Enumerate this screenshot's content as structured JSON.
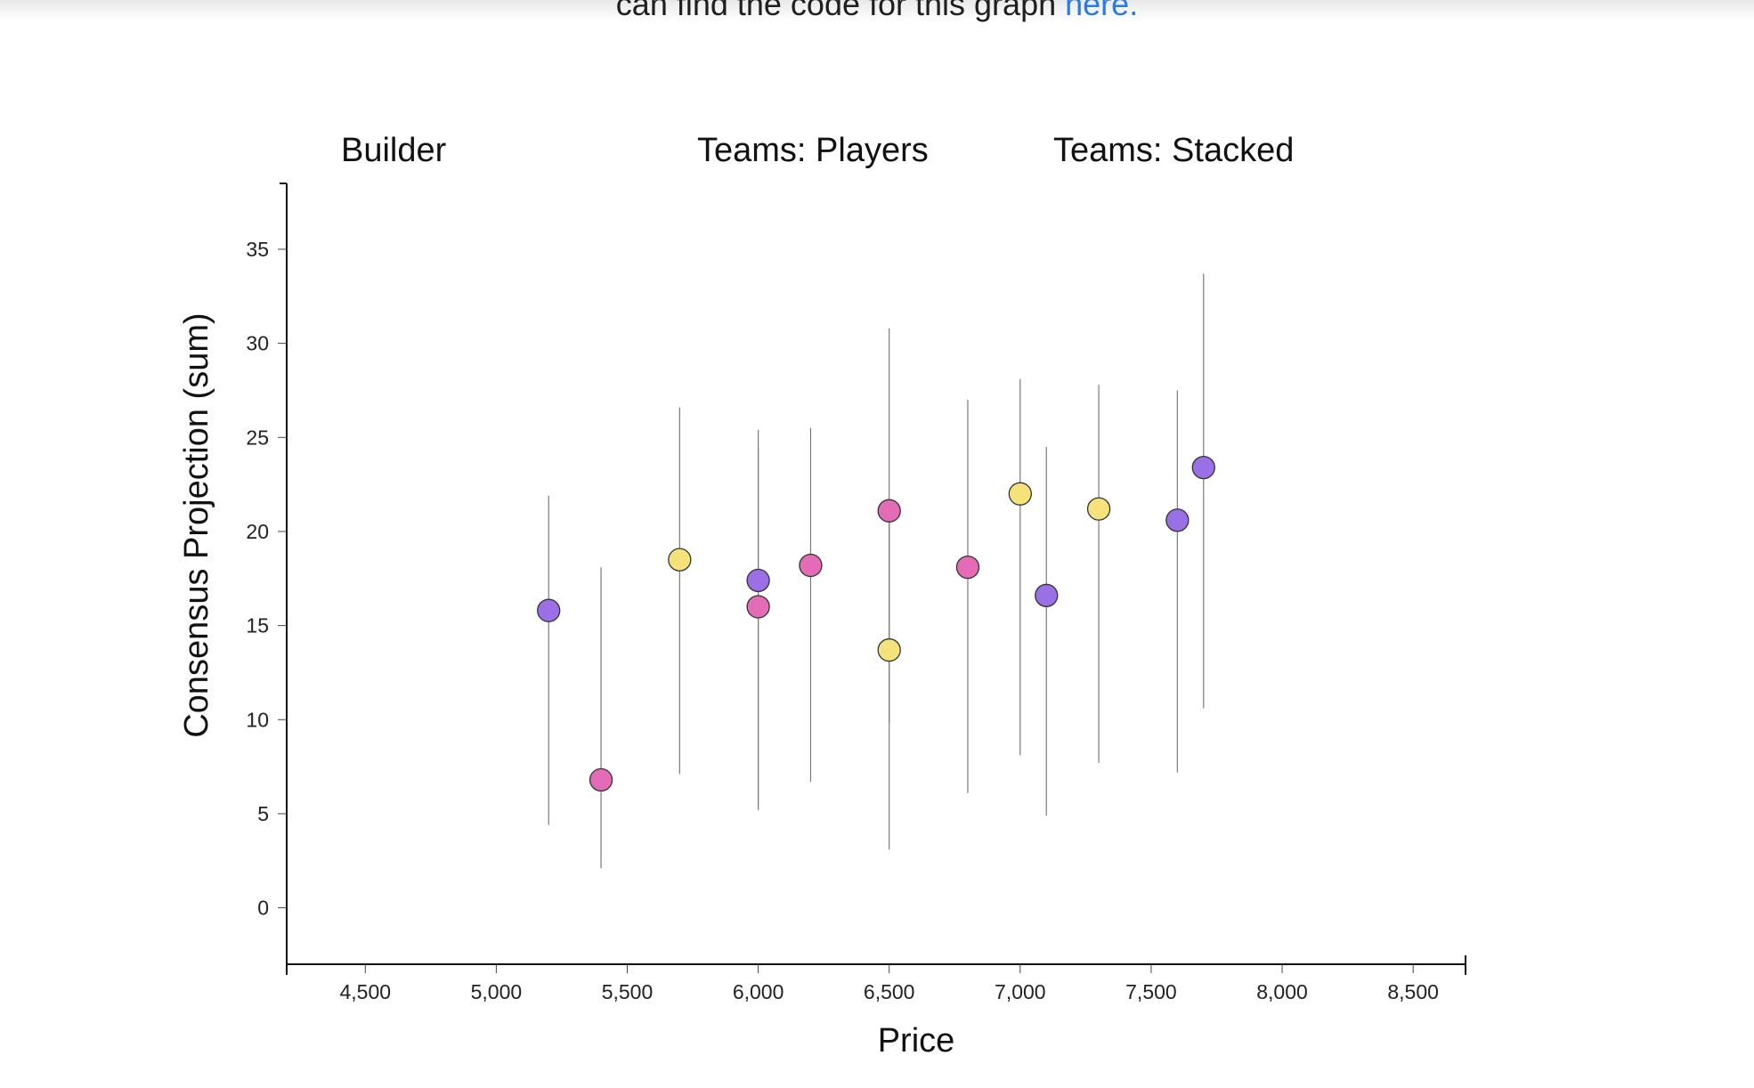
{
  "page": {
    "intro_text": "can find the code for this graph",
    "intro_link": "here."
  },
  "facets": [
    "Builder",
    "Teams: Players",
    "Teams: Stacked"
  ],
  "chart_data": {
    "type": "scatter",
    "xlabel": "Price",
    "ylabel": "Consensus Projection (sum)",
    "xlim": [
      4200,
      8700
    ],
    "ylim": [
      -3,
      38.5
    ],
    "xticks": [
      4500,
      5000,
      5500,
      6000,
      6500,
      7000,
      7500,
      8000,
      8500
    ],
    "xtick_labels": [
      "4,500",
      "5,000",
      "5,500",
      "6,000",
      "6,500",
      "7,000",
      "7,500",
      "8,000",
      "8,500"
    ],
    "yticks": [
      0,
      5,
      10,
      15,
      20,
      25,
      30,
      35
    ],
    "ytick_labels": [
      "0",
      "5",
      "10",
      "15",
      "20",
      "25",
      "30",
      "35"
    ],
    "grid": false,
    "colors": {
      "purple": "#9b6fe6",
      "pink": "#e46bb5",
      "yellow": "#f6e27a",
      "range": "#7a7a7a",
      "outline": "#333333"
    },
    "points": [
      {
        "x": 5200,
        "y": 15.8,
        "low": 4.4,
        "high": 21.9,
        "color": "purple"
      },
      {
        "x": 5400,
        "y": 6.8,
        "low": 2.1,
        "high": 18.1,
        "color": "pink"
      },
      {
        "x": 5700,
        "y": 18.5,
        "low": 7.1,
        "high": 26.6,
        "color": "yellow"
      },
      {
        "x": 6000,
        "y": 17.4,
        "low": 5.4,
        "high": 24.4,
        "color": "purple"
      },
      {
        "x": 6000,
        "y": 16.0,
        "low": 5.2,
        "high": 25.4,
        "color": "pink"
      },
      {
        "x": 6200,
        "y": 18.2,
        "low": 6.7,
        "high": 25.5,
        "color": "pink"
      },
      {
        "x": 6500,
        "y": 21.1,
        "low": 3.1,
        "high": 30.8,
        "color": "pink"
      },
      {
        "x": 6500,
        "y": 13.7,
        "low": 9.8,
        "high": 21.3,
        "color": "yellow"
      },
      {
        "x": 6800,
        "y": 18.1,
        "low": 6.1,
        "high": 27.0,
        "color": "pink"
      },
      {
        "x": 7000,
        "y": 22.0,
        "low": 8.1,
        "high": 28.1,
        "color": "yellow"
      },
      {
        "x": 7100,
        "y": 16.6,
        "low": 4.9,
        "high": 24.5,
        "color": "purple"
      },
      {
        "x": 7300,
        "y": 21.2,
        "low": 7.7,
        "high": 27.8,
        "color": "yellow"
      },
      {
        "x": 7600,
        "y": 20.6,
        "low": 7.2,
        "high": 27.5,
        "color": "purple"
      },
      {
        "x": 7700,
        "y": 23.4,
        "low": 10.6,
        "high": 33.7,
        "color": "purple"
      }
    ]
  }
}
